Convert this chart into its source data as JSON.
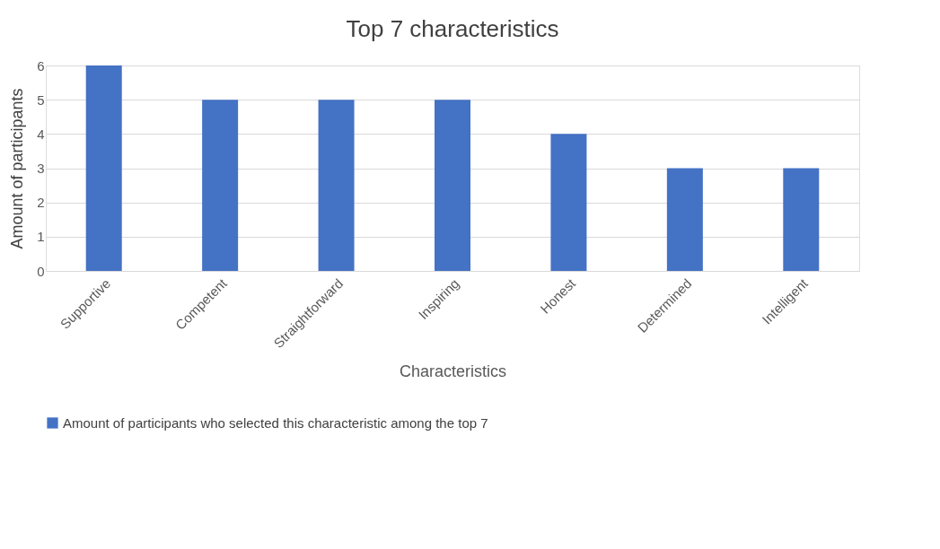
{
  "chart_data": {
    "type": "bar",
    "title": "Top 7 characteristics",
    "xlabel": "Characteristics",
    "ylabel": "Amount of participants",
    "categories": [
      "Supportive",
      "Competent",
      "Straightforward",
      "Inspiring",
      "Honest",
      "Determined",
      "Intelligent"
    ],
    "series": [
      {
        "name": "Amount of participants who selected this characteristic among the top 7",
        "color": "#4472c4",
        "values": [
          6,
          5,
          5,
          5,
          4,
          3,
          3
        ]
      }
    ],
    "ylim": [
      0,
      6
    ],
    "yticks": [
      0,
      1,
      2,
      3,
      4,
      5,
      6
    ],
    "grid": "y",
    "legend": "bottom"
  }
}
